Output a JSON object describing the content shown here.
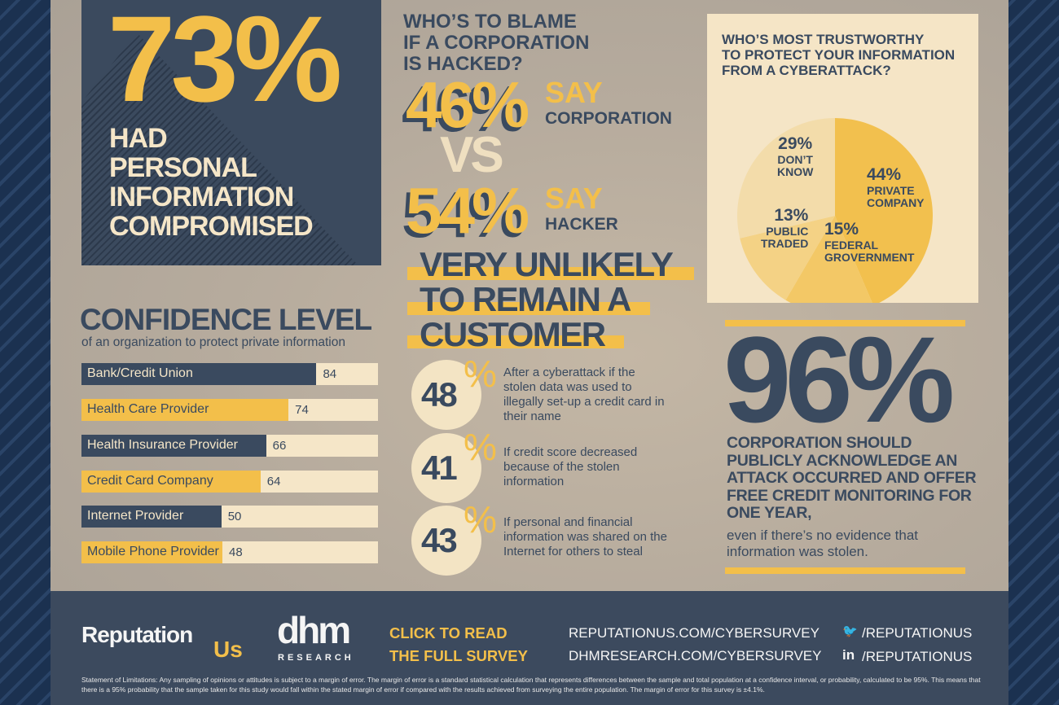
{
  "colors": {
    "navy": "#3a4a5f",
    "yellow": "#f3bf4a",
    "cream": "#f5e6c8"
  },
  "stat73": {
    "value": "73%",
    "lines": [
      "HAD",
      "PERSONAL",
      "INFORMATION",
      "COMPROMISED"
    ]
  },
  "confidence": {
    "title": "CONFIDENCE LEVEL",
    "subtitle": "of an organization to protect private information"
  },
  "blame": {
    "title_lines": [
      "WHO’S TO BLAME",
      "IF A CORPORATION",
      "IS HACKED?"
    ],
    "vs": "VS",
    "rows": [
      {
        "pct": "46%",
        "say": "SAY",
        "who": "CORPORATION"
      },
      {
        "pct": "54%",
        "say": "SAY",
        "who": "HACKER"
      }
    ]
  },
  "unlikely": {
    "title_lines": [
      "VERY UNLIKELY",
      "TO REMAIN A",
      "CUSTOMER"
    ],
    "items": [
      {
        "value": "48",
        "pct": "%",
        "text": "After a cyberattack if the stolen data was used to illegally set-up a credit card in their name"
      },
      {
        "value": "41",
        "pct": "%",
        "text": "If credit score decreased because of the stolen information"
      },
      {
        "value": "43",
        "pct": "%",
        "text": "If personal and financial information was shared on the Internet for others to steal"
      }
    ]
  },
  "stat96": {
    "value": "96%",
    "bold": "CORPORATION SHOULD PUBLICLY ACKNOWLEDGE AN ATTACK OCCURRED AND OFFER FREE CREDIT MONITORING FOR ONE YEAR,",
    "regular": "even if there’s no evidence that information was stolen."
  },
  "chart_data": [
    {
      "type": "bar",
      "orientation": "horizontal",
      "title": "CONFIDENCE LEVEL",
      "subtitle": "of an organization to protect private information",
      "categories": [
        "Bank/Credit Union",
        "Health Care Provider",
        "Health Insurance Provider",
        "Credit Card Company",
        "Internet Provider",
        "Mobile Phone Provider"
      ],
      "values": [
        84,
        74,
        66,
        64,
        50,
        48
      ],
      "xlim": [
        0,
        100
      ],
      "grid": false,
      "bar_colors": [
        "#3a4a5f",
        "#f3bf4a",
        "#3a4a5f",
        "#f3bf4a",
        "#3a4a5f",
        "#f3bf4a"
      ]
    },
    {
      "type": "pie",
      "title": "WHO’S MOST TRUSTWORTHY TO PROTECT YOUR INFORMATION FROM A CYBERATTACK?",
      "title_lines": [
        "WHO’S MOST TRUSTWORTHY",
        "TO PROTECT YOUR INFORMATION",
        "FROM A CYBERATTACK?"
      ],
      "slices": [
        {
          "label": "PRIVATE COMPANY",
          "label_lines": [
            "PRIVATE",
            "COMPANY"
          ],
          "value": 44,
          "display": "44%",
          "color": "#f2c04e"
        },
        {
          "label": "FEDERAL GROVERNMENT",
          "label_lines": [
            "FEDERAL",
            "GROVERNMENT"
          ],
          "value": 15,
          "display": "15%",
          "color": "#f3c866"
        },
        {
          "label": "PUBLIC TRADED",
          "label_lines": [
            "PUBLIC",
            "TRADED"
          ],
          "value": 13,
          "display": "13%",
          "color": "#f4d285"
        },
        {
          "label": "DON'T KNOW",
          "label_lines": [
            "DON’T",
            "KNOW"
          ],
          "value": 29,
          "display": "29%",
          "color": "#f3dcaa"
        }
      ]
    }
  ],
  "footer": {
    "logo1_a": "Reputation",
    "logo1_b": "Us",
    "logo2_a": "dhm",
    "logo2_b": "RESEARCH",
    "cta": [
      "CLICK TO READ",
      "THE FULL SURVEY"
    ],
    "urls": [
      "REPUTATIONUS.COM/CYBERSURVEY",
      "DHMRESEARCH.COM/CYBERSURVEY"
    ],
    "social": [
      {
        "icon": "twitter-icon",
        "glyph": "🐦",
        "handle": "/REPUTATIONUS"
      },
      {
        "icon": "linkedin-icon",
        "glyph": "in",
        "handle": "/REPUTATIONUS"
      }
    ],
    "legal": "Statement of Limitations: Any sampling of opinions or attitudes is subject to a margin of error. The margin of error is a standard statistical calculation that represents differences between the sample and total population at a confidence interval, or probability, calculated to be 95%. This means that there is a 95% probability that the sample taken for this study would fall within the stated margin of error if compared with the results achieved from surveying the entire population. The margin of error for this survey is ±4.1%."
  }
}
